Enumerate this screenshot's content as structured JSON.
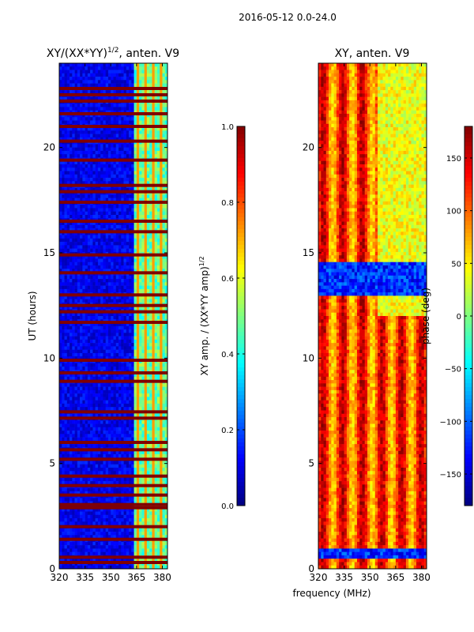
{
  "figure_title": "2016-05-12 0.0-24.0",
  "colors": {
    "background": "#ffffff",
    "axis": "#000000",
    "low": "#00007f",
    "high": "#7f0000"
  },
  "chart_data": [
    {
      "type": "heatmap",
      "title_main": "XY/(XX*YY)",
      "title_sup": "1/2",
      "title_rest": ", anten. V9",
      "xlabel": "",
      "ylabel": "UT (hours)",
      "xlim": [
        320,
        383
      ],
      "ylim": [
        0,
        24
      ],
      "xticks": [
        320,
        335,
        350,
        365,
        380
      ],
      "yticks": [
        0,
        5,
        10,
        15,
        20
      ],
      "colormap": "jet",
      "colorbar": {
        "label_main": "XY amp. / (XX*YY amp)",
        "label_sup": "1/2",
        "range": [
          0.0,
          1.0
        ],
        "ticks": [
          "0.0",
          "0.2",
          "0.4",
          "0.6",
          "0.8",
          "1.0"
        ],
        "tick_values": [
          0.0,
          0.2,
          0.4,
          0.6,
          0.8,
          1.0
        ]
      },
      "saturated_rows_ut": [
        0.3,
        0.55,
        1.4,
        2.0,
        2.9,
        3.05,
        3.5,
        3.95,
        4.4,
        5.2,
        5.65,
        6.0,
        7.15,
        7.45,
        8.9,
        9.3,
        9.9,
        11.7,
        12.2,
        12.5,
        13.0,
        14.05,
        14.9,
        16.0,
        16.5,
        17.4,
        17.9,
        18.2,
        19.4,
        20.3,
        21.0,
        21.6,
        22.2,
        22.5,
        22.8
      ],
      "data_summary": "Low normalized amplitude (~0.05) below 363 MHz; elevated values (~0.4-0.7) in 363-383 MHz band"
    },
    {
      "type": "heatmap",
      "title": "XY, anten. V9",
      "xlabel": "frequency (MHz)",
      "ylabel": "",
      "xlim": [
        320,
        383
      ],
      "ylim": [
        0,
        24
      ],
      "xticks": [
        320,
        335,
        350,
        365,
        380
      ],
      "yticks": [
        0,
        5,
        10,
        15,
        20
      ],
      "colormap": "jet",
      "colorbar": {
        "label": "phase (deg)",
        "range": [
          -180,
          180
        ],
        "ticks": [
          "150",
          "100",
          "50",
          "0",
          "−50",
          "−100",
          "−150"
        ],
        "tick_values": [
          150,
          100,
          50,
          0,
          -50,
          -100,
          -150
        ]
      },
      "data_summary": "Phase mostly 60-170 deg with frequency-dependent banding; negative phase (~-120 deg) blocks near UT 13-14.5 and 0.5-1"
    }
  ]
}
